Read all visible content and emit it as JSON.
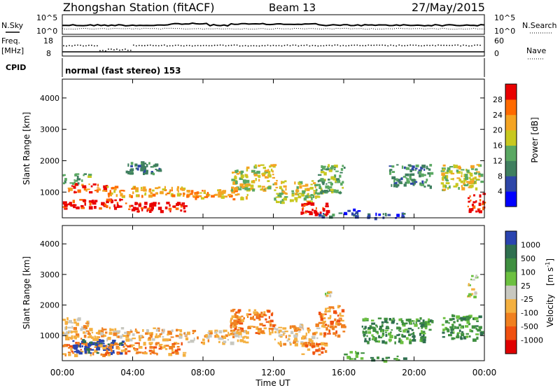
{
  "header": {
    "title": "Zhongshan Station (fitACF)",
    "beam": "Beam 13",
    "date": "27/May/2015"
  },
  "top_panels": {
    "nsky_label": "N.Sky",
    "nsearch_label": "N.Search",
    "noise_ticks": [
      "10^5",
      "10^0"
    ],
    "freq_label_1": "Freq.",
    "freq_label_2": "[MHz]",
    "freq_ticks": [
      "18",
      "8"
    ],
    "nave_label": "Nave",
    "nave_ticks": [
      "60",
      "0"
    ],
    "cpid_label": "CPID",
    "cpid_text": "normal (fast stereo) 153"
  },
  "chart_data": [
    {
      "type": "heatmap",
      "name": "power",
      "xlabel": "Time UT",
      "ylabel": "Slant Range [km]",
      "x_ticks": [
        "00:00",
        "04:00",
        "08:00",
        "12:00",
        "16:00",
        "20:00",
        "00:00"
      ],
      "xlim_hours": [
        0,
        24
      ],
      "ylim_km": [
        180,
        4600
      ],
      "y_ticks": [
        1000,
        2000,
        3000,
        4000
      ],
      "colorbar": {
        "label": "Power [dB]",
        "ticks": [
          4,
          8,
          12,
          16,
          20,
          24,
          28
        ],
        "range": [
          0,
          32
        ],
        "colors": [
          "#0000ff",
          "#2e46a8",
          "#3f7f5f",
          "#5aa862",
          "#c8c820",
          "#f4a423",
          "#ff6a00",
          "#e90000"
        ]
      },
      "regions": [
        {
          "t": [
            0.0,
            3.5
          ],
          "r": [
            500,
            800
          ],
          "level": 7
        },
        {
          "t": [
            3.5,
            7.0
          ],
          "r": [
            400,
            700
          ],
          "level": 7
        },
        {
          "t": [
            0.3,
            2.5
          ],
          "r": [
            1000,
            1300
          ],
          "level": 6
        },
        {
          "t": [
            2.5,
            7.0
          ],
          "r": [
            900,
            1200
          ],
          "level": 5
        },
        {
          "t": [
            7.0,
            10.5
          ],
          "r": [
            800,
            1100
          ],
          "level": 5
        },
        {
          "t": [
            9.5,
            12.0
          ],
          "r": [
            1100,
            1900
          ],
          "level": 4
        },
        {
          "t": [
            12.0,
            14.5
          ],
          "r": [
            700,
            1400
          ],
          "level": 4
        },
        {
          "t": [
            13.5,
            15.0
          ],
          "r": [
            300,
            700
          ],
          "level": 7
        },
        {
          "t": [
            14.5,
            16.0
          ],
          "r": [
            1000,
            1900
          ],
          "level": 3
        },
        {
          "t": [
            14.3,
            16.0
          ],
          "r": [
            250,
            350
          ],
          "level": 2
        },
        {
          "t": [
            16.0,
            16.8
          ],
          "r": [
            250,
            500
          ],
          "level": 1
        },
        {
          "t": [
            17.3,
            19.5
          ],
          "r": [
            200,
            350
          ],
          "level": 1
        },
        {
          "t": [
            18.5,
            21.0
          ],
          "r": [
            1200,
            1900
          ],
          "level": 2
        },
        {
          "t": [
            21.5,
            23.8
          ],
          "r": [
            1100,
            1900
          ],
          "level": 4
        },
        {
          "t": [
            23.0,
            23.9
          ],
          "r": [
            400,
            1000
          ],
          "level": 7
        },
        {
          "t": [
            0.0,
            1.5
          ],
          "r": [
            1300,
            1600
          ],
          "level": 3
        },
        {
          "t": [
            3.5,
            5.5
          ],
          "r": [
            1600,
            2000
          ],
          "level": 2
        }
      ]
    },
    {
      "type": "heatmap",
      "name": "velocity",
      "xlabel": "Time UT",
      "ylabel": "Slant Range [km]",
      "x_ticks": [
        "00:00",
        "04:00",
        "08:00",
        "12:00",
        "16:00",
        "20:00",
        "00:00"
      ],
      "xlim_hours": [
        0,
        24
      ],
      "ylim_km": [
        180,
        4600
      ],
      "y_ticks": [
        1000,
        2000,
        3000,
        4000
      ],
      "colorbar": {
        "label": "Velocity",
        "unit": "[m s",
        "unit_exp": "-1",
        "unit_close": "]",
        "ticks": [
          "1000",
          "500",
          "100",
          "25",
          "-25",
          "-100",
          "-500",
          "-1000"
        ],
        "colors": [
          "#2a44b0",
          "#2f6f4f",
          "#3f8f40",
          "#6cc040",
          "#c8c8c0",
          "#f4b040",
          "#f08020",
          "#f05010",
          "#e00000"
        ]
      },
      "regions": [
        {
          "t": [
            0.0,
            2.0
          ],
          "r": [
            400,
            800
          ],
          "level": 6
        },
        {
          "t": [
            0.5,
            3.5
          ],
          "r": [
            450,
            900
          ],
          "level": 0
        },
        {
          "t": [
            2.0,
            7.0
          ],
          "r": [
            400,
            800
          ],
          "level": 6
        },
        {
          "t": [
            0.0,
            7.0
          ],
          "r": [
            900,
            1300
          ],
          "level": 5
        },
        {
          "t": [
            7.0,
            10.5
          ],
          "r": [
            800,
            1200
          ],
          "level": 5
        },
        {
          "t": [
            9.5,
            12.0
          ],
          "r": [
            1100,
            1900
          ],
          "level": 6
        },
        {
          "t": [
            12.0,
            14.5
          ],
          "r": [
            700,
            1400
          ],
          "level": 5
        },
        {
          "t": [
            13.5,
            15.0
          ],
          "r": [
            400,
            800
          ],
          "level": 6
        },
        {
          "t": [
            14.5,
            16.0
          ],
          "r": [
            1000,
            2000
          ],
          "level": 6
        },
        {
          "t": [
            14.6,
            15.2
          ],
          "r": [
            2300,
            2500
          ],
          "level": 4
        },
        {
          "t": [
            16.0,
            17.0
          ],
          "r": [
            250,
            500
          ],
          "level": 2
        },
        {
          "t": [
            17.5,
            19.5
          ],
          "r": [
            200,
            350
          ],
          "level": 2
        },
        {
          "t": [
            17.0,
            21.0
          ],
          "r": [
            800,
            1600
          ],
          "level": 2
        },
        {
          "t": [
            21.5,
            23.8
          ],
          "r": [
            900,
            1700
          ],
          "level": 2
        },
        {
          "t": [
            23.0,
            23.5
          ],
          "r": [
            2300,
            3000
          ],
          "level": 4
        },
        {
          "t": [
            0.0,
            1.5
          ],
          "r": [
            1300,
            1600
          ],
          "level": 5
        }
      ]
    }
  ]
}
